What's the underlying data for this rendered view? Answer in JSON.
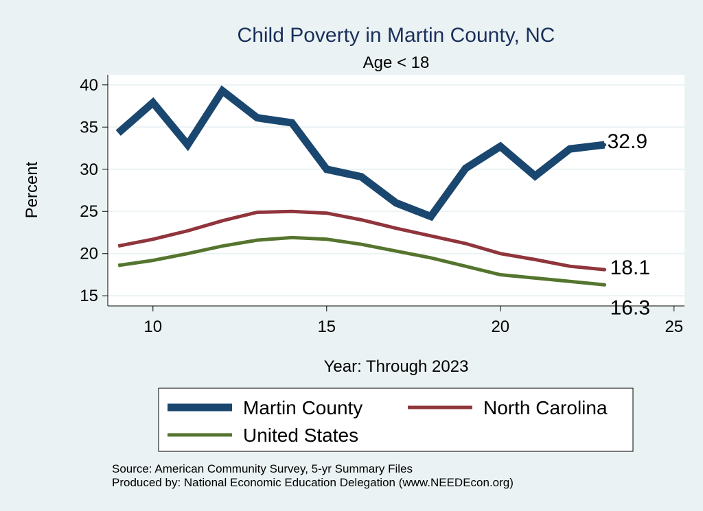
{
  "chart_data": {
    "type": "line",
    "title": "Child Poverty in Martin County, NC",
    "subtitle": "Age < 18",
    "xlabel": "Year: Through 2023",
    "ylabel": "Percent",
    "xlim": [
      8.7,
      25.3
    ],
    "ylim": [
      13.8,
      41.2
    ],
    "x_ticks": [
      10,
      15,
      20,
      25
    ],
    "y_ticks": [
      15,
      20,
      25,
      30,
      35,
      40
    ],
    "grid": true,
    "legend_position": "bottom",
    "x": [
      9,
      10,
      11,
      12,
      13,
      14,
      15,
      16,
      17,
      18,
      19,
      20,
      21,
      22,
      23
    ],
    "series": [
      {
        "name": "Martin County",
        "color": "#1a476f",
        "values": [
          34.3,
          37.9,
          32.9,
          39.3,
          36.1,
          35.5,
          30.0,
          29.1,
          26.0,
          24.4,
          30.1,
          32.7,
          29.2,
          32.4,
          32.9
        ],
        "end_label": "32.9"
      },
      {
        "name": "North Carolina",
        "color": "#90353b",
        "values": [
          20.9,
          21.7,
          22.7,
          23.9,
          24.9,
          25.0,
          24.8,
          24.0,
          23.0,
          22.1,
          21.2,
          20.0,
          19.3,
          18.5,
          18.1
        ],
        "end_label": "18.1"
      },
      {
        "name": "United States",
        "color": "#55752f",
        "values": [
          18.6,
          19.2,
          20.0,
          20.9,
          21.6,
          21.9,
          21.7,
          21.1,
          20.3,
          19.5,
          18.5,
          17.5,
          17.1,
          16.7,
          16.3
        ],
        "end_label": "16.3"
      }
    ]
  },
  "notes": {
    "source": "Source: American Community Survey, 5-yr Summary Files",
    "produced_by": "Produced by: National Economic Education Delegation (www.NEEDEcon.org)"
  }
}
